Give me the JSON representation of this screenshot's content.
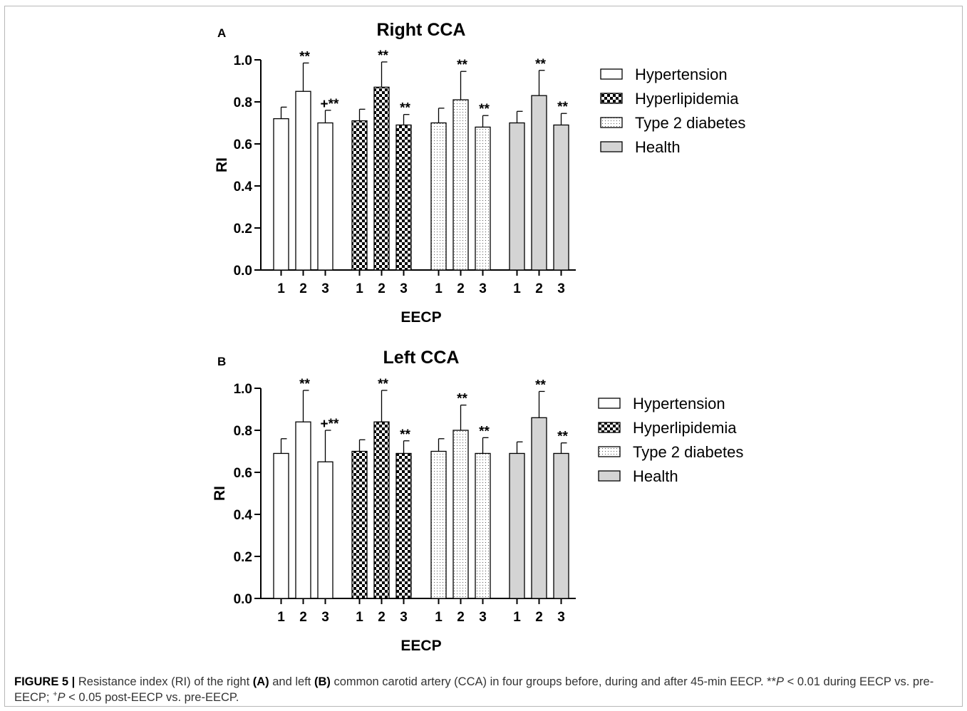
{
  "chart_data": [
    {
      "type": "bar",
      "panel_label": "A",
      "title": "Right CCA",
      "xlabel": "EECP",
      "ylabel": "RI",
      "ylim": [
        0,
        1.0
      ],
      "yticks": [
        "0.0",
        "0.2",
        "0.4",
        "0.6",
        "0.8",
        "1.0"
      ],
      "categories": [
        "1",
        "2",
        "3"
      ],
      "grid": false,
      "legend_position": "right",
      "series": [
        {
          "name": "Hypertension",
          "pattern": "white",
          "values": [
            0.72,
            0.85,
            0.7
          ],
          "errors": [
            0.055,
            0.135,
            0.06
          ],
          "annotations": [
            "",
            "**",
            "+**"
          ]
        },
        {
          "name": "Hyperlipidemia",
          "pattern": "checker",
          "values": [
            0.71,
            0.87,
            0.69
          ],
          "errors": [
            0.055,
            0.12,
            0.05
          ],
          "annotations": [
            "",
            "**",
            "**"
          ]
        },
        {
          "name": "Type 2 diabetes",
          "pattern": "dots",
          "values": [
            0.7,
            0.81,
            0.68
          ],
          "errors": [
            0.07,
            0.135,
            0.055
          ],
          "annotations": [
            "",
            "**",
            "**"
          ]
        },
        {
          "name": "Health",
          "pattern": "gray",
          "values": [
            0.7,
            0.83,
            0.69
          ],
          "errors": [
            0.055,
            0.12,
            0.055
          ],
          "annotations": [
            "",
            "**",
            "**"
          ]
        }
      ]
    },
    {
      "type": "bar",
      "panel_label": "B",
      "title": "Left CCA",
      "xlabel": "EECP",
      "ylabel": "RI",
      "ylim": [
        0,
        1.0
      ],
      "yticks": [
        "0.0",
        "0.2",
        "0.4",
        "0.6",
        "0.8",
        "1.0"
      ],
      "categories": [
        "1",
        "2",
        "3"
      ],
      "grid": false,
      "legend_position": "right",
      "series": [
        {
          "name": "Hypertension",
          "pattern": "white",
          "values": [
            0.69,
            0.84,
            0.65
          ],
          "errors": [
            0.07,
            0.15,
            0.15
          ],
          "annotations": [
            "",
            "**",
            "+**"
          ]
        },
        {
          "name": "Hyperlipidemia",
          "pattern": "checker",
          "values": [
            0.7,
            0.84,
            0.69
          ],
          "errors": [
            0.055,
            0.15,
            0.06
          ],
          "annotations": [
            "",
            "**",
            "**"
          ]
        },
        {
          "name": "Type 2 diabetes",
          "pattern": "dots",
          "values": [
            0.7,
            0.8,
            0.69
          ],
          "errors": [
            0.06,
            0.12,
            0.075
          ],
          "annotations": [
            "",
            "**",
            "**"
          ]
        },
        {
          "name": "Health",
          "pattern": "gray",
          "values": [
            0.69,
            0.86,
            0.69
          ],
          "errors": [
            0.055,
            0.125,
            0.05
          ],
          "annotations": [
            "",
            "**",
            "**"
          ]
        }
      ]
    }
  ],
  "caption": {
    "label": "FIGURE 5 |",
    "text_1": " Resistance index (RI) of the right ",
    "ref_a": "(A)",
    "text_2": " and left ",
    "ref_b": "(B)",
    "text_3": " common carotid artery (CCA) in four groups before, during and after 45-min EECP. **",
    "p1": "P",
    "text_4": " < 0.01 during EECP vs. pre-EECP; ",
    "sup": "+",
    "p2": "P",
    "text_5": " < 0.05 post-EECP vs. pre-EECP."
  }
}
